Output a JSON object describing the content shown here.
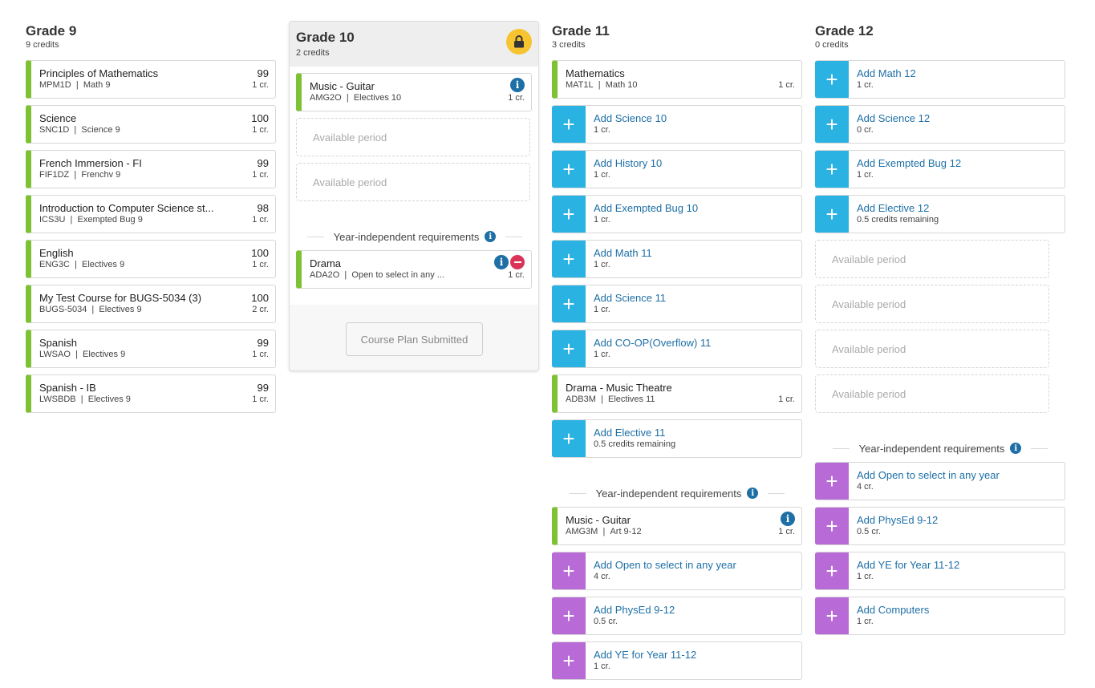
{
  "grade9": {
    "title": "Grade 9",
    "credits": "9 credits",
    "courses": [
      {
        "name": "Principles of Mathematics",
        "code": "MPM1D",
        "req": "Math 9",
        "grade": "99",
        "cr": "1 cr."
      },
      {
        "name": "Science",
        "code": "SNC1D",
        "req": "Science 9",
        "grade": "100",
        "cr": "1 cr."
      },
      {
        "name": "French Immersion - FI",
        "code": "FIF1DZ",
        "req": "Frenchv 9",
        "grade": "99",
        "cr": "1 cr."
      },
      {
        "name": "Introduction to Computer Science st...",
        "code": "ICS3U",
        "req": "Exempted Bug 9",
        "grade": "98",
        "cr": "1 cr."
      },
      {
        "name": "English",
        "code": "ENG3C",
        "req": "Electives 9",
        "grade": "100",
        "cr": "1 cr."
      },
      {
        "name": "My Test Course for BUGS-5034 (3)",
        "code": "BUGS-5034",
        "req": "Electives 9",
        "grade": "100",
        "cr": "2 cr."
      },
      {
        "name": "Spanish",
        "code": "LWSAO",
        "req": "Electives 9",
        "grade": "99",
        "cr": "1 cr."
      },
      {
        "name": "Spanish - IB",
        "code": "LWSBDB",
        "req": "Electives 9",
        "grade": "99",
        "cr": "1 cr."
      }
    ]
  },
  "grade10": {
    "title": "Grade 10",
    "credits": "2 credits",
    "course": {
      "name": "Music - Guitar",
      "code": "AMG2O",
      "req": "Electives 10",
      "cr": "1 cr."
    },
    "available": [
      "Available period",
      "Available period"
    ],
    "yi_label": "Year-independent requirements",
    "yi_course": {
      "name": "Drama",
      "code": "ADA2O",
      "req": "Open to select in any ...",
      "cr": "1 cr."
    },
    "submitted_label": "Course Plan Submitted"
  },
  "grade11": {
    "title": "Grade 11",
    "credits": "3 credits",
    "items": [
      {
        "kind": "course",
        "name": "Mathematics",
        "code": "MAT1L",
        "req": "Math 10",
        "cr": "1 cr."
      },
      {
        "kind": "add",
        "name": "Add Science 10",
        "sub": "1 cr."
      },
      {
        "kind": "add",
        "name": "Add History 10",
        "sub": "1 cr."
      },
      {
        "kind": "add",
        "name": "Add Exempted Bug 10",
        "sub": "1 cr."
      },
      {
        "kind": "add",
        "name": "Add Math 11",
        "sub": "1 cr."
      },
      {
        "kind": "add",
        "name": "Add Science 11",
        "sub": "1 cr."
      },
      {
        "kind": "add",
        "name": "Add CO-OP(Overflow) 11",
        "sub": "1 cr."
      },
      {
        "kind": "course",
        "name": "Drama - Music Theatre",
        "code": "ADB3M",
        "req": "Electives 11",
        "cr": "1 cr."
      },
      {
        "kind": "add",
        "name": "Add Elective 11",
        "sub": "0.5 credits remaining"
      }
    ],
    "yi_label": "Year-independent requirements",
    "yi_items": [
      {
        "kind": "course",
        "name": "Music - Guitar",
        "code": "AMG3M",
        "req": "Art 9-12",
        "cr": "1 cr."
      },
      {
        "kind": "add",
        "name": "Add Open to select in any year",
        "sub": "4 cr."
      },
      {
        "kind": "add",
        "name": "Add PhysEd 9-12",
        "sub": "0.5 cr."
      },
      {
        "kind": "add",
        "name": "Add YE for Year 11-12",
        "sub": "1 cr."
      }
    ]
  },
  "grade12": {
    "title": "Grade 12",
    "credits": "0 credits",
    "adds": [
      {
        "name": "Add Math 12",
        "sub": "1 cr."
      },
      {
        "name": "Add Science 12",
        "sub": "0 cr."
      },
      {
        "name": "Add Exempted Bug 12",
        "sub": "1 cr."
      },
      {
        "name": "Add Elective 12",
        "sub": "0.5 credits remaining"
      }
    ],
    "available": [
      "Available period",
      "Available period",
      "Available period",
      "Available period"
    ],
    "yi_label": "Year-independent requirements",
    "yi_adds": [
      {
        "name": "Add Open to select in any year",
        "sub": "4 cr."
      },
      {
        "name": "Add PhysEd 9-12",
        "sub": "0.5 cr."
      },
      {
        "name": "Add YE for Year 11-12",
        "sub": "1 cr."
      },
      {
        "name": "Add Computers",
        "sub": "1 cr."
      }
    ]
  },
  "colors": {
    "course_bar": "#7dc232",
    "add_blue": "#2ab3e2",
    "add_purple": "#b86bd6",
    "lock": "#f6c431",
    "info": "#1d6fa5",
    "remove": "#d93358"
  },
  "icons": {
    "lock": "lock-icon",
    "info": "info-icon",
    "remove": "remove-icon",
    "plus": "plus-icon"
  }
}
